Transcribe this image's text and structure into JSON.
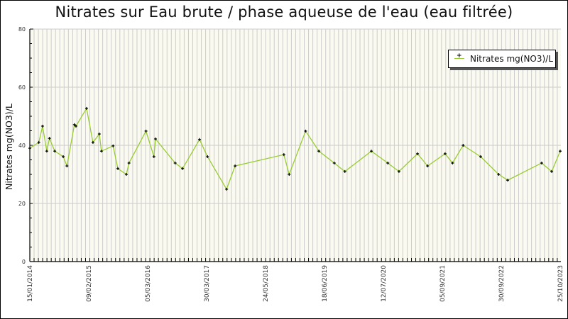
{
  "chart_title": "Nitrates sur Eau brute / phase aqueuse de l'eau (eau filtrée)",
  "colors": {
    "line": "#99cc33",
    "marker": "#000000",
    "plot_bg": "#fafaf0",
    "grid": "#cccccc"
  },
  "legend": {
    "label": "Nitrates mg(NO3)/L",
    "position": "top-right"
  },
  "chart_data": {
    "type": "line",
    "title": "Nitrates sur Eau brute / phase aqueuse de l'eau (eau filtrée)",
    "xlabel": "",
    "ylabel": "Nitrates mg(NO3)/L",
    "ylim": [
      0,
      80
    ],
    "yticks": [
      0,
      20,
      40,
      60,
      80
    ],
    "xtick_labels": [
      "15/01/2014",
      "09/02/2015",
      "05/03/2016",
      "30/03/2017",
      "24/05/2018",
      "18/06/2019",
      "12/07/2020",
      "05/09/2021",
      "30/09/2022",
      "25/10/2023"
    ],
    "grid": true,
    "legend_position": "top-right",
    "series": [
      {
        "name": "Nitrates mg(NO3)/L",
        "x_frac": [
          0.0,
          0.017,
          0.024,
          0.032,
          0.037,
          0.047,
          0.063,
          0.07,
          0.084,
          0.087,
          0.107,
          0.119,
          0.131,
          0.135,
          0.157,
          0.166,
          0.182,
          0.187,
          0.219,
          0.234,
          0.237,
          0.274,
          0.288,
          0.32,
          0.335,
          0.371,
          0.387,
          0.479,
          0.489,
          0.52,
          0.545,
          0.574,
          0.594,
          0.644,
          0.675,
          0.696,
          0.731,
          0.75,
          0.783,
          0.797,
          0.817,
          0.85,
          0.884,
          0.901,
          0.965,
          0.984,
          1.0
        ],
        "values": [
          39,
          41,
          46.6,
          38,
          42.4,
          38,
          36.1,
          32.9,
          47.1,
          46.6,
          52.7,
          41,
          43.9,
          38,
          39.8,
          32,
          30,
          33.9,
          44.9,
          36.1,
          42.2,
          33.9,
          32,
          42,
          36.1,
          24.9,
          32.9,
          36.8,
          30,
          44.9,
          38,
          33.9,
          31,
          38,
          33.9,
          31,
          37.1,
          32.9,
          37.1,
          33.9,
          40,
          36.1,
          30,
          28,
          33.9,
          31,
          38
        ]
      }
    ]
  }
}
